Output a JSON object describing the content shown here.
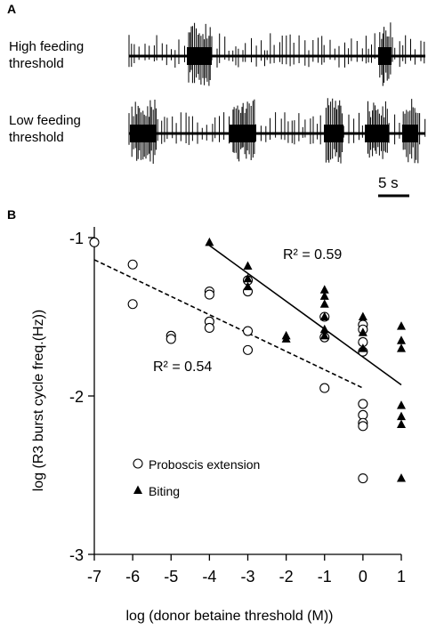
{
  "panel_a": {
    "label": "A",
    "traces": [
      {
        "line1": "High feeding",
        "line2": "threshold"
      },
      {
        "line1": "Low feeding",
        "line2": "threshold"
      }
    ],
    "scale_bar_label": "5 s"
  },
  "panel_b": {
    "label": "B"
  },
  "chart_data": {
    "type": "scatter",
    "xlabel": "log (donor betaine threshold (M))",
    "ylabel": "log (R3 burst cycle freq.(Hz))",
    "xlim": [
      -7,
      1
    ],
    "ylim": [
      -3,
      -1
    ],
    "xticks": [
      "-7",
      "-6",
      "-5",
      "-4",
      "-3",
      "-2",
      "-1",
      "0",
      "1"
    ],
    "yticks": [
      "-1",
      "-2",
      "-3"
    ],
    "legend_position": "bottom-left",
    "series": [
      {
        "name": "Proboscis extension",
        "marker": "open-circle",
        "points": [
          [
            -7,
            -1.03
          ],
          [
            -6,
            -1.17
          ],
          [
            -6,
            -1.42
          ],
          [
            -5,
            -1.62
          ],
          [
            -5,
            -1.64
          ],
          [
            -4,
            -1.34
          ],
          [
            -4,
            -1.36
          ],
          [
            -4,
            -1.53
          ],
          [
            -4,
            -1.57
          ],
          [
            -3,
            -1.27
          ],
          [
            -3,
            -1.34
          ],
          [
            -3,
            -1.59
          ],
          [
            -3,
            -1.71
          ],
          [
            -1,
            -1.5
          ],
          [
            -1,
            -1.63
          ],
          [
            -1,
            -1.95
          ],
          [
            0,
            -1.55
          ],
          [
            0,
            -1.58
          ],
          [
            0,
            -1.66
          ],
          [
            0,
            -1.72
          ],
          [
            0,
            -2.05
          ],
          [
            0,
            -2.12
          ],
          [
            0,
            -2.17
          ],
          [
            0,
            -2.19
          ],
          [
            0,
            -2.52
          ]
        ],
        "regression": {
          "line": [
            [
              -7,
              -1.14
            ],
            [
              0,
              -1.95
            ]
          ],
          "style": "dashed",
          "r2_label": "R² = 0.54"
        }
      },
      {
        "name": "Biting",
        "marker": "filled-triangle",
        "points": [
          [
            -4,
            -1.03
          ],
          [
            -3,
            -1.18
          ],
          [
            -3,
            -1.26
          ],
          [
            -3,
            -1.31
          ],
          [
            -2,
            -1.62
          ],
          [
            -2,
            -1.64
          ],
          [
            -1,
            -1.33
          ],
          [
            -1,
            -1.37
          ],
          [
            -1,
            -1.42
          ],
          [
            -1,
            -1.5
          ],
          [
            -1,
            -1.58
          ],
          [
            -1,
            -1.62
          ],
          [
            0,
            -1.5
          ],
          [
            0,
            -1.6
          ],
          [
            0,
            -1.7
          ],
          [
            1,
            -1.56
          ],
          [
            1,
            -1.65
          ],
          [
            1,
            -1.7
          ],
          [
            1,
            -2.06
          ],
          [
            1,
            -2.13
          ],
          [
            1,
            -2.18
          ],
          [
            1,
            -2.52
          ]
        ],
        "regression": {
          "line": [
            [
              -4,
              -1.05
            ],
            [
              1,
              -1.93
            ]
          ],
          "style": "solid",
          "r2_label": "R² = 0.59"
        }
      }
    ]
  }
}
